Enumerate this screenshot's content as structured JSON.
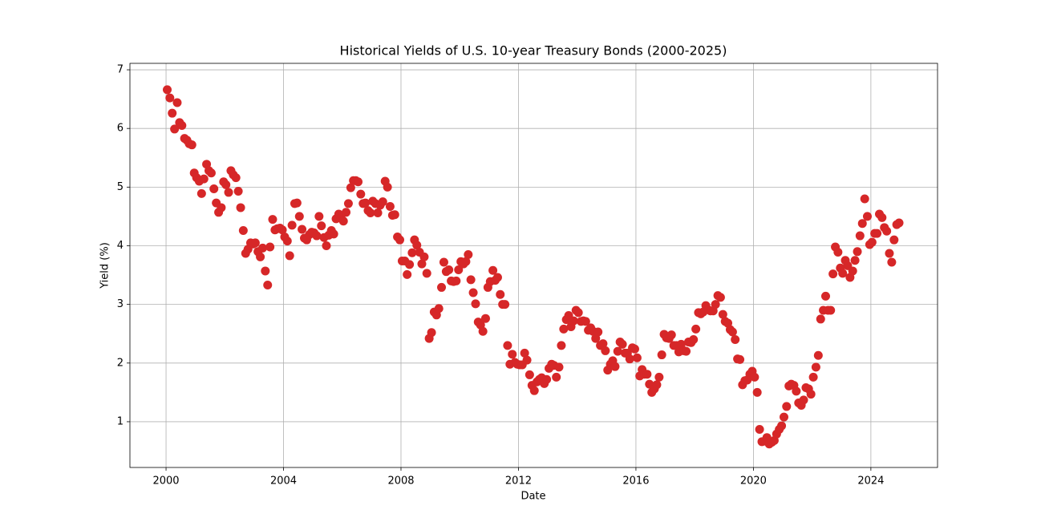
{
  "chart_data": {
    "type": "scatter",
    "title": "Historical Yields of U.S. 10-year Treasury Bonds (2000-2025)",
    "x_label": "Date",
    "y_label": "Yield (%)",
    "color": "#d62728",
    "grid": true,
    "xlim": [
      1998.77,
      2026.27
    ],
    "ylim": [
      0.22,
      7.11
    ],
    "xticks": [
      2000,
      2004,
      2008,
      2012,
      2016,
      2020,
      2024
    ],
    "yticks": [
      1,
      2,
      3,
      4,
      5,
      6,
      7
    ],
    "x": [
      2000.04,
      2000.13,
      2000.21,
      2000.29,
      2000.38,
      2000.46,
      2000.54,
      2000.63,
      2000.71,
      2000.79,
      2000.88,
      2000.96,
      2001.04,
      2001.13,
      2001.21,
      2001.29,
      2001.38,
      2001.46,
      2001.54,
      2001.63,
      2001.71,
      2001.79,
      2001.88,
      2001.96,
      2002.04,
      2002.13,
      2002.21,
      2002.29,
      2002.38,
      2002.46,
      2002.54,
      2002.63,
      2002.71,
      2002.79,
      2002.88,
      2002.96,
      2003.04,
      2003.13,
      2003.21,
      2003.29,
      2003.38,
      2003.46,
      2003.54,
      2003.63,
      2003.71,
      2003.79,
      2003.88,
      2003.96,
      2004.04,
      2004.13,
      2004.21,
      2004.29,
      2004.38,
      2004.46,
      2004.54,
      2004.63,
      2004.71,
      2004.79,
      2004.88,
      2004.96,
      2005.04,
      2005.13,
      2005.21,
      2005.29,
      2005.38,
      2005.46,
      2005.54,
      2005.63,
      2005.71,
      2005.79,
      2005.88,
      2005.96,
      2006.04,
      2006.13,
      2006.21,
      2006.29,
      2006.38,
      2006.46,
      2006.54,
      2006.63,
      2006.71,
      2006.79,
      2006.88,
      2006.96,
      2007.04,
      2007.13,
      2007.21,
      2007.29,
      2007.38,
      2007.46,
      2007.54,
      2007.63,
      2007.71,
      2007.79,
      2007.88,
      2007.96,
      2008.04,
      2008.13,
      2008.21,
      2008.29,
      2008.38,
      2008.46,
      2008.54,
      2008.63,
      2008.71,
      2008.79,
      2008.88,
      2008.96,
      2009.04,
      2009.13,
      2009.21,
      2009.29,
      2009.38,
      2009.46,
      2009.54,
      2009.63,
      2009.71,
      2009.79,
      2009.88,
      2009.96,
      2010.04,
      2010.13,
      2010.21,
      2010.29,
      2010.38,
      2010.46,
      2010.54,
      2010.63,
      2010.71,
      2010.79,
      2010.88,
      2010.96,
      2011.04,
      2011.13,
      2011.21,
      2011.29,
      2011.38,
      2011.46,
      2011.54,
      2011.63,
      2011.71,
      2011.79,
      2011.88,
      2011.96,
      2012.04,
      2012.13,
      2012.21,
      2012.29,
      2012.38,
      2012.46,
      2012.54,
      2012.63,
      2012.71,
      2012.79,
      2012.88,
      2012.96,
      2013.04,
      2013.13,
      2013.21,
      2013.29,
      2013.38,
      2013.46,
      2013.54,
      2013.63,
      2013.71,
      2013.79,
      2013.88,
      2013.96,
      2014.04,
      2014.13,
      2014.21,
      2014.29,
      2014.38,
      2014.46,
      2014.54,
      2014.63,
      2014.71,
      2014.79,
      2014.88,
      2014.96,
      2015.04,
      2015.13,
      2015.21,
      2015.29,
      2015.38,
      2015.46,
      2015.54,
      2015.63,
      2015.71,
      2015.79,
      2015.88,
      2015.96,
      2016.04,
      2016.13,
      2016.21,
      2016.29,
      2016.38,
      2016.46,
      2016.54,
      2016.63,
      2016.71,
      2016.79,
      2016.88,
      2016.96,
      2017.04,
      2017.13,
      2017.21,
      2017.29,
      2017.38,
      2017.46,
      2017.54,
      2017.63,
      2017.71,
      2017.79,
      2017.88,
      2017.96,
      2018.04,
      2018.13,
      2018.21,
      2018.29,
      2018.38,
      2018.46,
      2018.54,
      2018.63,
      2018.71,
      2018.79,
      2018.88,
      2018.96,
      2019.04,
      2019.13,
      2019.21,
      2019.29,
      2019.38,
      2019.46,
      2019.54,
      2019.63,
      2019.71,
      2019.79,
      2019.88,
      2019.96,
      2020.04,
      2020.13,
      2020.21,
      2020.29,
      2020.38,
      2020.46,
      2020.54,
      2020.63,
      2020.71,
      2020.79,
      2020.88,
      2020.96,
      2021.04,
      2021.13,
      2021.21,
      2021.29,
      2021.38,
      2021.46,
      2021.54,
      2021.63,
      2021.71,
      2021.79,
      2021.88,
      2021.96,
      2022.04,
      2022.13,
      2022.21,
      2022.29,
      2022.38,
      2022.46,
      2022.54,
      2022.63,
      2022.71,
      2022.79,
      2022.88,
      2022.96,
      2023.04,
      2023.13,
      2023.21,
      2023.29,
      2023.38,
      2023.46,
      2023.54,
      2023.63,
      2023.71,
      2023.79,
      2023.88,
      2023.96,
      2024.04,
      2024.13,
      2024.21,
      2024.29,
      2024.38,
      2024.46,
      2024.54,
      2024.63,
      2024.71,
      2024.79,
      2024.88,
      2024.96
    ],
    "values": [
      6.66,
      6.52,
      6.26,
      5.99,
      6.44,
      6.1,
      6.05,
      5.83,
      5.8,
      5.74,
      5.72,
      5.24,
      5.16,
      5.1,
      4.89,
      5.14,
      5.39,
      5.28,
      5.24,
      4.97,
      4.73,
      4.57,
      4.65,
      5.09,
      5.04,
      4.91,
      5.28,
      5.21,
      5.16,
      4.93,
      4.65,
      4.26,
      3.87,
      3.94,
      4.05,
      4.03,
      4.05,
      3.9,
      3.81,
      3.96,
      3.57,
      3.33,
      3.98,
      4.45,
      4.27,
      4.29,
      4.3,
      4.27,
      4.15,
      4.08,
      3.83,
      4.35,
      4.72,
      4.73,
      4.5,
      4.28,
      4.13,
      4.1,
      4.19,
      4.23,
      4.22,
      4.17,
      4.5,
      4.34,
      4.14,
      4.0,
      4.18,
      4.26,
      4.2,
      4.46,
      4.54,
      4.47,
      4.42,
      4.57,
      4.72,
      4.99,
      5.11,
      5.11,
      5.09,
      4.88,
      4.72,
      4.73,
      4.6,
      4.56,
      4.76,
      4.72,
      4.56,
      4.69,
      4.75,
      5.1,
      5.0,
      4.67,
      4.52,
      4.53,
      4.15,
      4.1,
      3.74,
      3.74,
      3.51,
      3.68,
      3.88,
      4.1,
      4.01,
      3.89,
      3.69,
      3.81,
      3.53,
      2.42,
      2.52,
      2.87,
      2.82,
      2.93,
      3.29,
      3.72,
      3.56,
      3.59,
      3.4,
      3.39,
      3.4,
      3.59,
      3.73,
      3.69,
      3.73,
      3.85,
      3.42,
      3.2,
      3.01,
      2.7,
      2.65,
      2.54,
      2.76,
      3.29,
      3.39,
      3.58,
      3.41,
      3.46,
      3.17,
      3.0,
      3.0,
      2.3,
      1.98,
      2.15,
      2.01,
      1.98,
      1.97,
      1.97,
      2.17,
      2.05,
      1.8,
      1.62,
      1.53,
      1.68,
      1.72,
      1.75,
      1.65,
      1.72,
      1.91,
      1.98,
      1.96,
      1.76,
      1.93,
      2.3,
      2.58,
      2.74,
      2.81,
      2.62,
      2.72,
      2.9,
      2.86,
      2.71,
      2.72,
      2.71,
      2.56,
      2.6,
      2.54,
      2.42,
      2.53,
      2.3,
      2.33,
      2.21,
      1.88,
      1.98,
      2.04,
      1.94,
      2.2,
      2.36,
      2.32,
      2.17,
      2.17,
      2.07,
      2.26,
      2.24,
      2.09,
      1.78,
      1.89,
      1.81,
      1.81,
      1.64,
      1.5,
      1.56,
      1.63,
      1.76,
      2.14,
      2.49,
      2.43,
      2.42,
      2.48,
      2.3,
      2.3,
      2.19,
      2.32,
      2.21,
      2.2,
      2.36,
      2.35,
      2.4,
      2.58,
      2.86,
      2.84,
      2.87,
      2.98,
      2.91,
      2.89,
      2.89,
      3.0,
      3.15,
      3.12,
      2.83,
      2.71,
      2.68,
      2.57,
      2.53,
      2.4,
      2.07,
      2.06,
      1.63,
      1.7,
      1.71,
      1.81,
      1.86,
      1.76,
      1.5,
      0.87,
      0.66,
      0.67,
      0.73,
      0.62,
      0.65,
      0.68,
      0.79,
      0.87,
      0.93,
      1.08,
      1.26,
      1.61,
      1.64,
      1.62,
      1.52,
      1.32,
      1.28,
      1.37,
      1.58,
      1.56,
      1.47,
      1.76,
      1.93,
      2.13,
      2.75,
      2.9,
      3.14,
      2.9,
      2.9,
      3.52,
      3.98,
      3.89,
      3.62,
      3.53,
      3.75,
      3.66,
      3.46,
      3.57,
      3.75,
      3.9,
      4.17,
      4.38,
      4.8,
      4.5,
      4.02,
      4.06,
      4.21,
      4.21,
      4.54,
      4.48,
      4.31,
      4.25,
      3.87,
      3.72,
      4.1,
      4.36,
      4.39
    ]
  }
}
